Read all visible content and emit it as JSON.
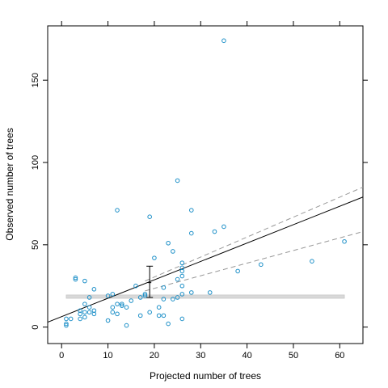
{
  "chart_data": {
    "type": "scatter",
    "title": "",
    "xlabel": "Projected number of trees",
    "ylabel": "Observed number of trees",
    "xlim": [
      -3,
      65
    ],
    "ylim": [
      -10,
      183
    ],
    "x_ticks": [
      0,
      10,
      20,
      30,
      40,
      50,
      60
    ],
    "y_ticks": [
      0,
      50,
      100,
      150
    ],
    "grid": false,
    "legend": "none",
    "colors": {
      "points": "#1e90c8",
      "fit_line": "#000000",
      "ci_lines": "#999999",
      "reference_band": "#d9d9d9",
      "error_bar": "#000000"
    },
    "points": [
      {
        "x": 1,
        "y": 5
      },
      {
        "x": 1,
        "y": 2
      },
      {
        "x": 1,
        "y": 1
      },
      {
        "x": 2,
        "y": 5
      },
      {
        "x": 3,
        "y": 30
      },
      {
        "x": 3,
        "y": 29
      },
      {
        "x": 4,
        "y": 10
      },
      {
        "x": 4,
        "y": 8
      },
      {
        "x": 4,
        "y": 5
      },
      {
        "x": 5,
        "y": 28
      },
      {
        "x": 5,
        "y": 14
      },
      {
        "x": 5,
        "y": 9
      },
      {
        "x": 5,
        "y": 6
      },
      {
        "x": 6,
        "y": 18
      },
      {
        "x": 6,
        "y": 12
      },
      {
        "x": 6,
        "y": 9
      },
      {
        "x": 7,
        "y": 23
      },
      {
        "x": 7,
        "y": 10
      },
      {
        "x": 7,
        "y": 8
      },
      {
        "x": 10,
        "y": 19
      },
      {
        "x": 10,
        "y": 4
      },
      {
        "x": 11,
        "y": 20
      },
      {
        "x": 11,
        "y": 12
      },
      {
        "x": 11,
        "y": 9
      },
      {
        "x": 12,
        "y": 71
      },
      {
        "x": 12,
        "y": 14
      },
      {
        "x": 12,
        "y": 8
      },
      {
        "x": 13,
        "y": 14
      },
      {
        "x": 13,
        "y": 13
      },
      {
        "x": 14,
        "y": 12
      },
      {
        "x": 14,
        "y": 1
      },
      {
        "x": 15,
        "y": 16
      },
      {
        "x": 16,
        "y": 25
      },
      {
        "x": 17,
        "y": 18
      },
      {
        "x": 17,
        "y": 7
      },
      {
        "x": 18,
        "y": 20
      },
      {
        "x": 18,
        "y": 19
      },
      {
        "x": 19,
        "y": 67
      },
      {
        "x": 19,
        "y": 9
      },
      {
        "x": 20,
        "y": 42
      },
      {
        "x": 21,
        "y": 12
      },
      {
        "x": 21,
        "y": 7
      },
      {
        "x": 22,
        "y": 24
      },
      {
        "x": 22,
        "y": 17
      },
      {
        "x": 22,
        "y": 7
      },
      {
        "x": 23,
        "y": 51
      },
      {
        "x": 23,
        "y": 2
      },
      {
        "x": 24,
        "y": 46
      },
      {
        "x": 24,
        "y": 17
      },
      {
        "x": 25,
        "y": 89
      },
      {
        "x": 25,
        "y": 29
      },
      {
        "x": 25,
        "y": 18
      },
      {
        "x": 26,
        "y": 39
      },
      {
        "x": 26,
        "y": 36
      },
      {
        "x": 26,
        "y": 34
      },
      {
        "x": 26,
        "y": 31
      },
      {
        "x": 26,
        "y": 25
      },
      {
        "x": 26,
        "y": 20
      },
      {
        "x": 26,
        "y": 5
      },
      {
        "x": 28,
        "y": 71
      },
      {
        "x": 28,
        "y": 57
      },
      {
        "x": 28,
        "y": 21
      },
      {
        "x": 32,
        "y": 21
      },
      {
        "x": 33,
        "y": 58
      },
      {
        "x": 35,
        "y": 174
      },
      {
        "x": 35,
        "y": 61
      },
      {
        "x": 38,
        "y": 34
      },
      {
        "x": 43,
        "y": 38
      },
      {
        "x": 54,
        "y": 40
      },
      {
        "x": 61,
        "y": 52
      }
    ],
    "fit_line": {
      "x": [
        -3,
        65
      ],
      "y": [
        3,
        79
      ]
    },
    "ci_upper": {
      "x": [
        18,
        65
      ],
      "y": [
        28,
        85
      ]
    },
    "ci_lower": {
      "x": [
        18,
        65
      ],
      "y": [
        22,
        58
      ]
    },
    "reference_band": {
      "x": [
        1,
        61
      ],
      "y_low": 17.5,
      "y_high": 19.5
    },
    "error_bar": {
      "x": 19,
      "y_low": 18,
      "y_high": 37,
      "y_mid": 27
    }
  }
}
